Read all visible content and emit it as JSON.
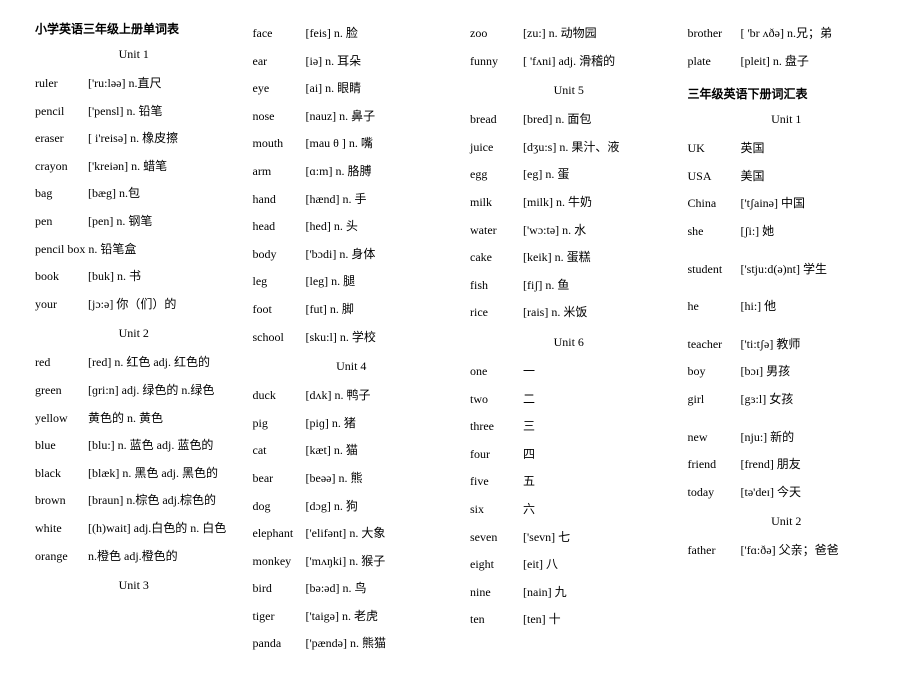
{
  "title1": "小学英语三年级上册单词表",
  "title2": "三年级英语下册词汇表",
  "unit": "Unit",
  "cols": [
    [
      {
        "type": "title",
        "text": "小学英语三年级上册单词表"
      },
      {
        "type": "unit",
        "n": "1"
      },
      {
        "type": "row",
        "w": "ruler",
        "p": "['ru:ləə]",
        "m": "n.直尺"
      },
      {
        "type": "row",
        "w": "pencil",
        "p": "['pensl]",
        "m": "n. 铅笔"
      },
      {
        "type": "row",
        "w": "eraser",
        "p": "[ i'reisə]",
        "m": "n. 橡皮擦"
      },
      {
        "type": "row",
        "w": "crayon",
        "p": "['kreiən]",
        "m": "n. 蜡笔"
      },
      {
        "type": "row",
        "w": "bag",
        "p": "[bæg]",
        "m": "n.包"
      },
      {
        "type": "row",
        "w": "pen",
        "p": "[pen]",
        "m": "n. 钢笔"
      },
      {
        "type": "row",
        "w": "pencil box",
        "p": "",
        "m": "n. 铅笔盒"
      },
      {
        "type": "row",
        "w": "book",
        "p": "[buk]",
        "m": "n. 书"
      },
      {
        "type": "row",
        "w": "your",
        "p": "[jɔ:ə]",
        "m": "你（们）的"
      },
      {
        "type": "unit",
        "n": "2"
      },
      {
        "type": "row",
        "w": "red",
        "p": "[red] n. 红色",
        "m": "adj. 红色的"
      },
      {
        "type": "row",
        "w": "green",
        "p": "[ɡri:n] adj. 绿色的 n.绿色",
        "m": ""
      },
      {
        "type": "row",
        "w": "yellow",
        "p": "黄色的 n. 黄色",
        "m": ""
      },
      {
        "type": "row",
        "w": "blue",
        "p": "[blu:] n. 蓝色",
        "m": "adj. 蓝色的"
      },
      {
        "type": "row",
        "w": "black",
        "p": "[blæk] n. 黑色 adj. 黑色的",
        "m": ""
      },
      {
        "type": "row",
        "w": "brown",
        "p": "[braun] n.棕色 adj.棕色的",
        "m": ""
      },
      {
        "type": "row",
        "w": "white",
        "p": "[(h)wait] adj.白色的 n. 白色",
        "m": ""
      },
      {
        "type": "row",
        "w": "orange",
        "p": "n.橙色 adj.橙色的",
        "m": ""
      },
      {
        "type": "unit",
        "n": "3"
      }
    ],
    [
      {
        "type": "row",
        "w": "face",
        "p": "[feis]",
        "m": "n. 脸"
      },
      {
        "type": "row",
        "w": "ear",
        "p": "[iə]",
        "m": "n. 耳朵"
      },
      {
        "type": "row",
        "w": "eye",
        "p": "[ai]",
        "m": "n. 眼睛"
      },
      {
        "type": "row",
        "w": "nose",
        "p": "[nauz]",
        "m": "n. 鼻子"
      },
      {
        "type": "row",
        "w": "mouth",
        "p": "[mau θ ]",
        "m": "n. 嘴"
      },
      {
        "type": "row",
        "w": "arm",
        "p": "[ɑ:m]",
        "m": "n. 胳膊"
      },
      {
        "type": "row",
        "w": "hand",
        "p": "[hænd]",
        "m": "n. 手"
      },
      {
        "type": "row",
        "w": "head",
        "p": "[hed]",
        "m": "n. 头"
      },
      {
        "type": "row",
        "w": "body",
        "p": "['bɔdi]",
        "m": "n. 身体"
      },
      {
        "type": "row",
        "w": "leg",
        "p": "[leg]",
        "m": "n. 腿"
      },
      {
        "type": "row",
        "w": "foot",
        "p": "[fut]",
        "m": "n. 脚"
      },
      {
        "type": "row",
        "w": "school",
        "p": "[sku:l]",
        "m": "n. 学校"
      },
      {
        "type": "unit",
        "n": "4"
      },
      {
        "type": "row",
        "w": "duck",
        "p": "[dʌk]",
        "m": "n. 鸭子"
      },
      {
        "type": "row",
        "w": "pig",
        "p": "[piɡ]",
        "m": "n. 猪"
      },
      {
        "type": "row",
        "w": "cat",
        "p": "[kæt]",
        "m": "n. 猫"
      },
      {
        "type": "row",
        "w": "bear",
        "p": "[beəə] n. 熊",
        "m": ""
      },
      {
        "type": "row",
        "w": "dog",
        "p": "[dɔg]",
        "m": "n. 狗"
      },
      {
        "type": "row",
        "w": "elephant",
        "p": "['elifənt]",
        "m": "n. 大象"
      },
      {
        "type": "row",
        "w": "monkey",
        "p": "['mʌŋki]",
        "m": "n. 猴子"
      },
      {
        "type": "row",
        "w": "bird",
        "p": "[bə:əd]",
        "m": "n. 鸟"
      },
      {
        "type": "row",
        "w": "tiger",
        "p": "['taigə]",
        "m": "n. 老虎"
      },
      {
        "type": "row",
        "w": "panda",
        "p": "['pændə]",
        "m": "n. 熊猫"
      }
    ],
    [
      {
        "type": "row",
        "w": "zoo",
        "p": "[zu:] n. 动物园",
        "m": ""
      },
      {
        "type": "row",
        "w": "funny",
        "p": "[ 'fʌni] adj. 滑稽的",
        "m": ""
      },
      {
        "type": "unit",
        "n": "5"
      },
      {
        "type": "row",
        "w": "bread",
        "p": "[bred]",
        "m": "n. 面包"
      },
      {
        "type": "row",
        "w": "juice",
        "p": "[dʒu:s]",
        "m": "n. 果汁、液"
      },
      {
        "type": "row",
        "w": "egg",
        "p": "[eg]",
        "m": "n. 蛋"
      },
      {
        "type": "row",
        "w": "milk",
        "p": "[milk]",
        "m": "n. 牛奶"
      },
      {
        "type": "row",
        "w": "water",
        "p": "['wɔ:tə]",
        "m": "n. 水"
      },
      {
        "type": "row",
        "w": "cake",
        "p": "[keik]",
        "m": "n. 蛋糕"
      },
      {
        "type": "row",
        "w": "fish",
        "p": "[fiʃ]",
        "m": "n.  鱼"
      },
      {
        "type": "row",
        "w": "rice",
        "p": "[rais]",
        "m": "n. 米饭"
      },
      {
        "type": "unit",
        "n": "6"
      },
      {
        "type": "row",
        "w": "one",
        "p": "一",
        "m": ""
      },
      {
        "type": "row",
        "w": "two",
        "p": "二",
        "m": ""
      },
      {
        "type": "row",
        "w": "three",
        "p": "三",
        "m": ""
      },
      {
        "type": "row",
        "w": "four",
        "p": "四",
        "m": ""
      },
      {
        "type": "row",
        "w": "five",
        "p": "五",
        "m": ""
      },
      {
        "type": "row",
        "w": "six",
        "p": "六",
        "m": ""
      },
      {
        "type": "row",
        "w": "seven",
        "p": "['sevn]",
        "m": "七"
      },
      {
        "type": "row",
        "w": "eight",
        "p": "[eit]",
        "m": "八"
      },
      {
        "type": "row",
        "w": "nine",
        "p": "[nain]",
        "m": "九"
      },
      {
        "type": "row",
        "w": "ten",
        "p": "[ten]",
        "m": "十"
      }
    ],
    [
      {
        "type": "row",
        "w": "brother",
        "p": "[ 'br ʌðə]",
        "m": "n.兄；弟"
      },
      {
        "type": "row",
        "w": "plate",
        "p": "[pleit]",
        "m": "n. 盘子"
      },
      {
        "type": "spacer"
      },
      {
        "type": "title",
        "text": "三年级英语下册词汇表"
      },
      {
        "type": "unit",
        "n": "1"
      },
      {
        "type": "row",
        "w": "UK",
        "p": "英国",
        "m": ""
      },
      {
        "type": "row",
        "w": "USA",
        "p": "美国",
        "m": ""
      },
      {
        "type": "row",
        "w": "China",
        "p": "['tʃainə] 中国",
        "m": ""
      },
      {
        "type": "row",
        "w": "she",
        "p": "[ʃi:]  她",
        "m": ""
      },
      {
        "type": "spacer"
      },
      {
        "type": "row",
        "w": "student",
        "p": "['stju:d(ə)nt]",
        "m": "学生"
      },
      {
        "type": "spacer"
      },
      {
        "type": "row",
        "w": "he",
        "p": "[hi:]",
        "m": "他"
      },
      {
        "type": "spacer"
      },
      {
        "type": "row",
        "w": "teacher",
        "p": "['ti:tʃə] 教师",
        "m": ""
      },
      {
        "type": "row",
        "w": "boy",
        "p": "[bɔɪ] 男孩",
        "m": ""
      },
      {
        "type": "row",
        "w": "girl",
        "p": "[gɜ:l] 女孩",
        "m": ""
      },
      {
        "type": "spacer"
      },
      {
        "type": "row",
        "w": "new",
        "p": "[nju:] 新的",
        "m": ""
      },
      {
        "type": "row",
        "w": "friend",
        "p": "[frend] 朋友",
        "m": ""
      },
      {
        "type": "row",
        "w": "today",
        "p": "[tə'deɪ] 今天",
        "m": ""
      },
      {
        "type": "unit",
        "n": "2"
      },
      {
        "type": "row",
        "w": "father",
        "p": "['fɑ:ðə]",
        "m": "父亲；爸爸"
      }
    ]
  ]
}
